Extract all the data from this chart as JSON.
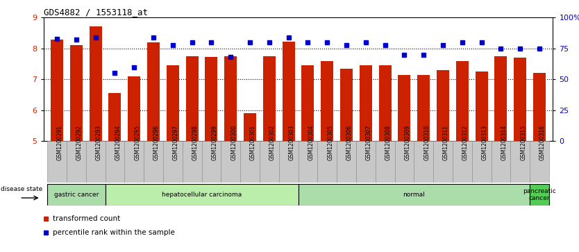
{
  "title": "GDS4882 / 1553118_at",
  "samples": [
    "GSM1200291",
    "GSM1200292",
    "GSM1200293",
    "GSM1200294",
    "GSM1200295",
    "GSM1200296",
    "GSM1200297",
    "GSM1200298",
    "GSM1200299",
    "GSM1200300",
    "GSM1200301",
    "GSM1200302",
    "GSM1200303",
    "GSM1200304",
    "GSM1200305",
    "GSM1200306",
    "GSM1200307",
    "GSM1200308",
    "GSM1200309",
    "GSM1200310",
    "GSM1200311",
    "GSM1200312",
    "GSM1200313",
    "GSM1200314",
    "GSM1200315",
    "GSM1200316"
  ],
  "bar_values": [
    8.3,
    8.1,
    8.72,
    6.55,
    7.1,
    8.2,
    7.45,
    7.75,
    7.72,
    7.75,
    5.9,
    7.75,
    8.22,
    7.45,
    7.6,
    7.35,
    7.45,
    7.45,
    7.15,
    7.15,
    7.3,
    7.6,
    7.25,
    7.75,
    7.7,
    7.2
  ],
  "percentile_values": [
    83,
    82,
    84,
    55,
    60,
    84,
    78,
    80,
    80,
    68,
    80,
    80,
    84,
    80,
    80,
    78,
    80,
    78,
    70,
    70,
    78,
    80,
    80,
    75,
    75,
    75
  ],
  "ylim_left": [
    5,
    9
  ],
  "ylim_right": [
    0,
    100
  ],
  "yticks_left": [
    5,
    6,
    7,
    8,
    9
  ],
  "yticks_right": [
    0,
    25,
    50,
    75,
    100
  ],
  "ytick_right_labels": [
    "0",
    "25",
    "50",
    "75",
    "100%"
  ],
  "bar_color": "#CC2200",
  "dot_color": "#0000CC",
  "tick_bg": "#C8C8C8",
  "disease_groups": [
    {
      "label": "gastric cancer",
      "start": 0,
      "end": 2,
      "color": "#AADDAA"
    },
    {
      "label": "hepatocellular carcinoma",
      "start": 3,
      "end": 12,
      "color": "#BBEEAA"
    },
    {
      "label": "normal",
      "start": 13,
      "end": 24,
      "color": "#AADDAA"
    },
    {
      "label": "pancreatic\ncancer",
      "start": 25,
      "end": 25,
      "color": "#55CC55"
    }
  ],
  "legend_bar_label": "transformed count",
  "legend_dot_label": "percentile rank within the sample",
  "disease_state_label": "disease state"
}
